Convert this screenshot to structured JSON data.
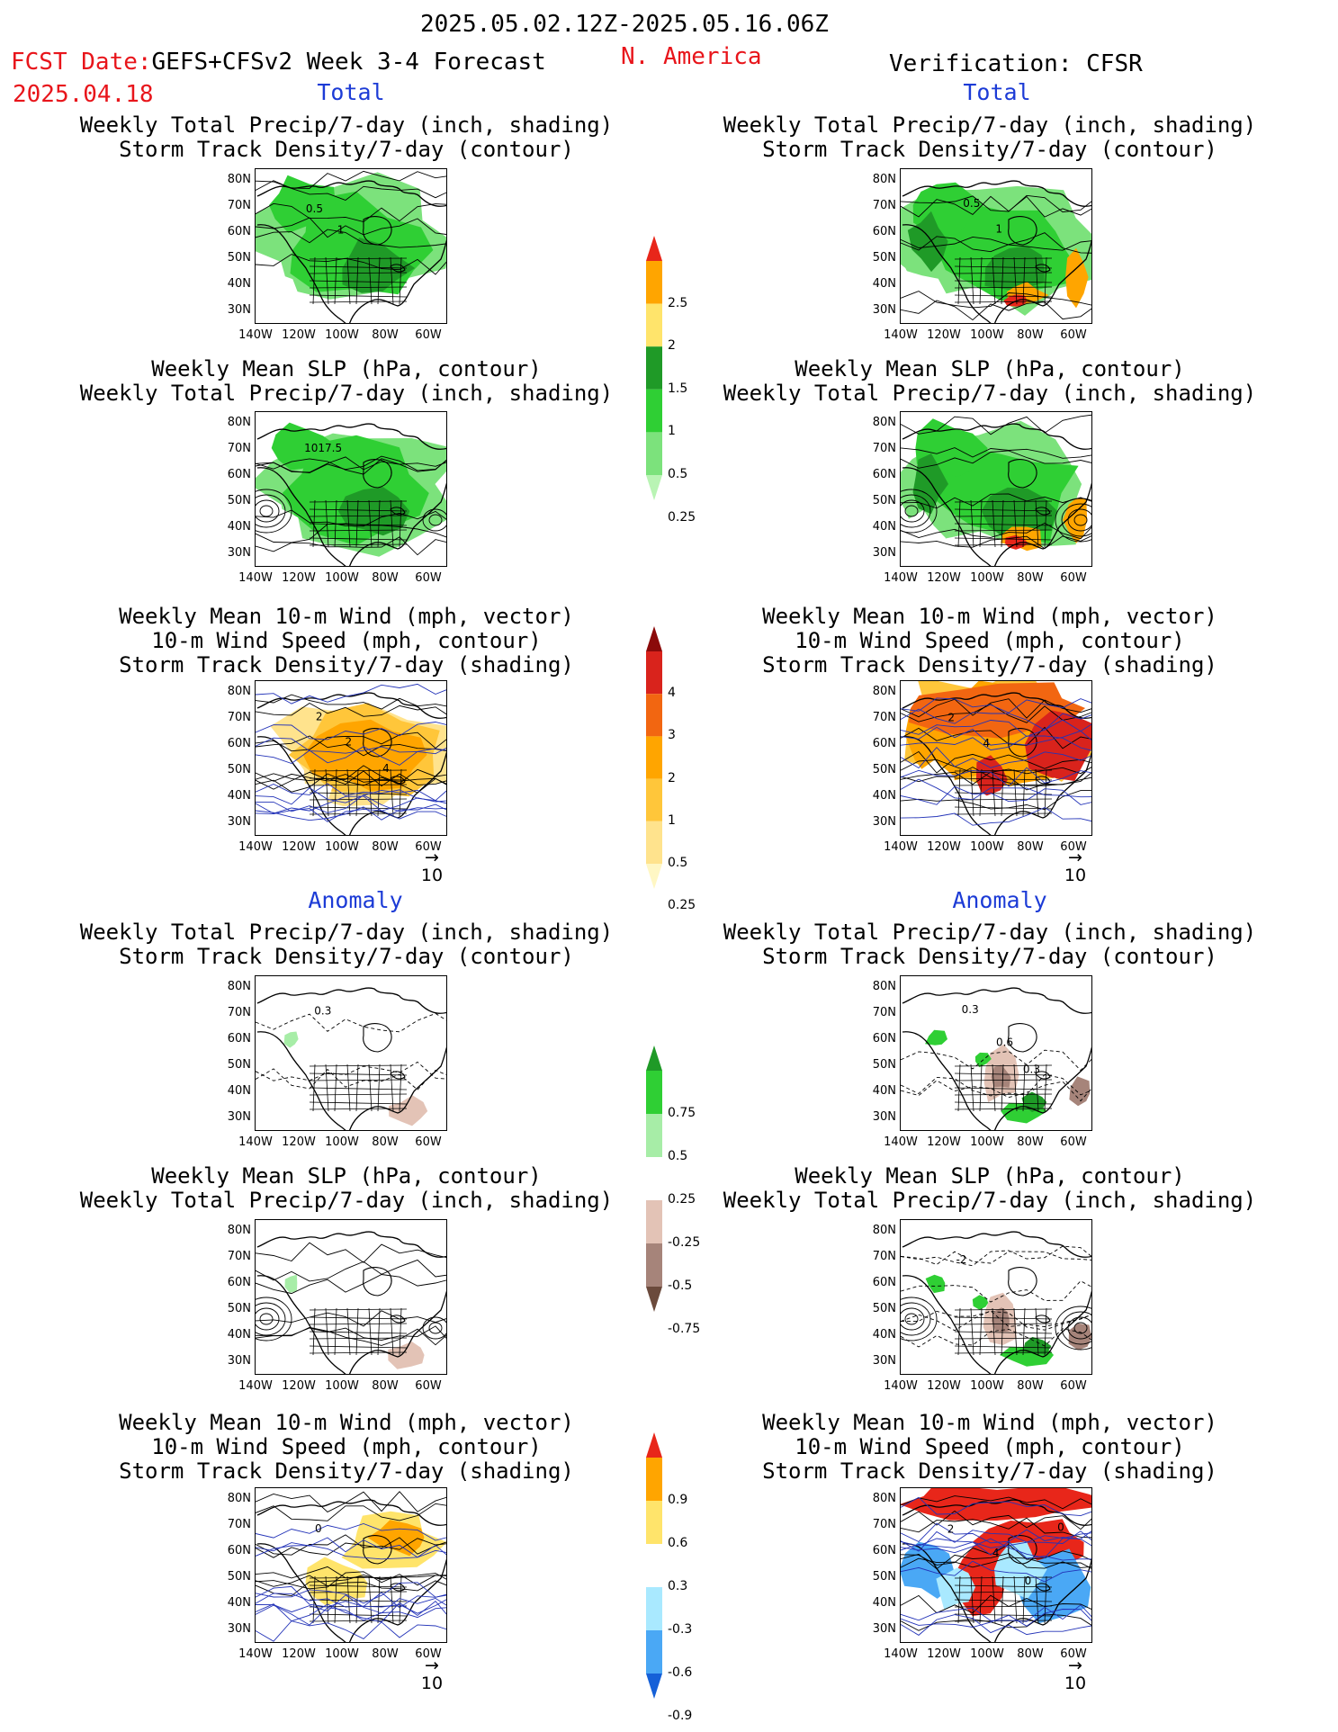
{
  "header": {
    "date_range": "2025.05.02.12Z-2025.05.16.06Z",
    "fcst_prefix": "FCST Date:",
    "fcst_model": "GEFS+CFSv2 Week 3-4 Forecast",
    "fcst_date": "2025.04.18",
    "region": "N. America",
    "verification": "Verification: CFSR"
  },
  "columns": [
    {
      "id": "forecast",
      "total_label": "Total",
      "anomaly_label": "Anomaly"
    },
    {
      "id": "verification",
      "total_label": "Total",
      "anomaly_label": "Anomaly"
    }
  ],
  "panel_titles": {
    "precip_storm": [
      "Weekly Total Precip/7-day (inch, shading)",
      "Storm Track Density/7-day (contour)"
    ],
    "slp_precip": [
      "Weekly Mean SLP (hPa, contour)",
      "Weekly Total Precip/7-day (inch, shading)"
    ],
    "wind_storm": [
      "Weekly Mean 10-m Wind (mph, vector)",
      "10-m Wind Speed (mph, contour)",
      "Storm Track Density/7-day (shading)"
    ]
  },
  "axes": {
    "lat_ticks": [
      "80N",
      "70N",
      "60N",
      "50N",
      "40N",
      "30N"
    ],
    "lon_ticks": [
      "140W",
      "120W",
      "100W",
      "80W",
      "60W"
    ]
  },
  "vector_reference": "10",
  "colorbars": [
    {
      "id": "precip-total",
      "labels": [
        "2.5",
        "2",
        "1.5",
        "1",
        "0.5",
        "0.25"
      ],
      "colors": [
        "#e8261a",
        "#ffa500",
        "#ffe46b",
        "#1f9a27",
        "#2fcf34",
        "#7ce27c",
        "#b9f4b4"
      ]
    },
    {
      "id": "storm-total",
      "labels": [
        "4",
        "3",
        "2",
        "1",
        "0.5",
        "0.25"
      ],
      "colors": [
        "#8b0a0a",
        "#d9231c",
        "#f26611",
        "#ffa500",
        "#ffc63a",
        "#ffe38d",
        "#fff7c4"
      ]
    },
    {
      "id": "precip-anom",
      "labels": [
        "0.75",
        "0.5",
        "0.25",
        "-0.25",
        "-0.5",
        "-0.75"
      ],
      "colors": [
        "#1f9a27",
        "#2fcf34",
        "#a7eda7",
        "#ffffff",
        "#e3c3b6",
        "#a6847a",
        "#6b4a3c"
      ]
    },
    {
      "id": "storm-anom",
      "labels": [
        "0.9",
        "0.6",
        "0.3",
        "-0.3",
        "-0.6",
        "-0.9"
      ],
      "colors": [
        "#e8261a",
        "#ffa500",
        "#ffe46b",
        "#ffffff",
        "#a9e9ff",
        "#4aa8f5",
        "#1560d8"
      ]
    }
  ],
  "map_annotations": {
    "fc_precip_storm": [
      "0.5",
      "1"
    ],
    "fc_slp_precip": [
      "1017.5"
    ],
    "fc_wind_storm": [
      "2",
      "2",
      "4"
    ],
    "vf_precip_storm": [
      "0.5",
      "1"
    ],
    "vf_wind_storm": [
      "2",
      "4"
    ],
    "fc_anom_precip_storm": [
      "0.3"
    ],
    "vf_anom_precip_storm": [
      "0.3",
      "0.6",
      "0.3"
    ],
    "vf_anom_slp_precip": [
      "-2"
    ],
    "fc_anom_wind_storm": [
      "0"
    ],
    "vf_anom_wind_storm": [
      "2",
      "4",
      "0",
      "0"
    ]
  }
}
